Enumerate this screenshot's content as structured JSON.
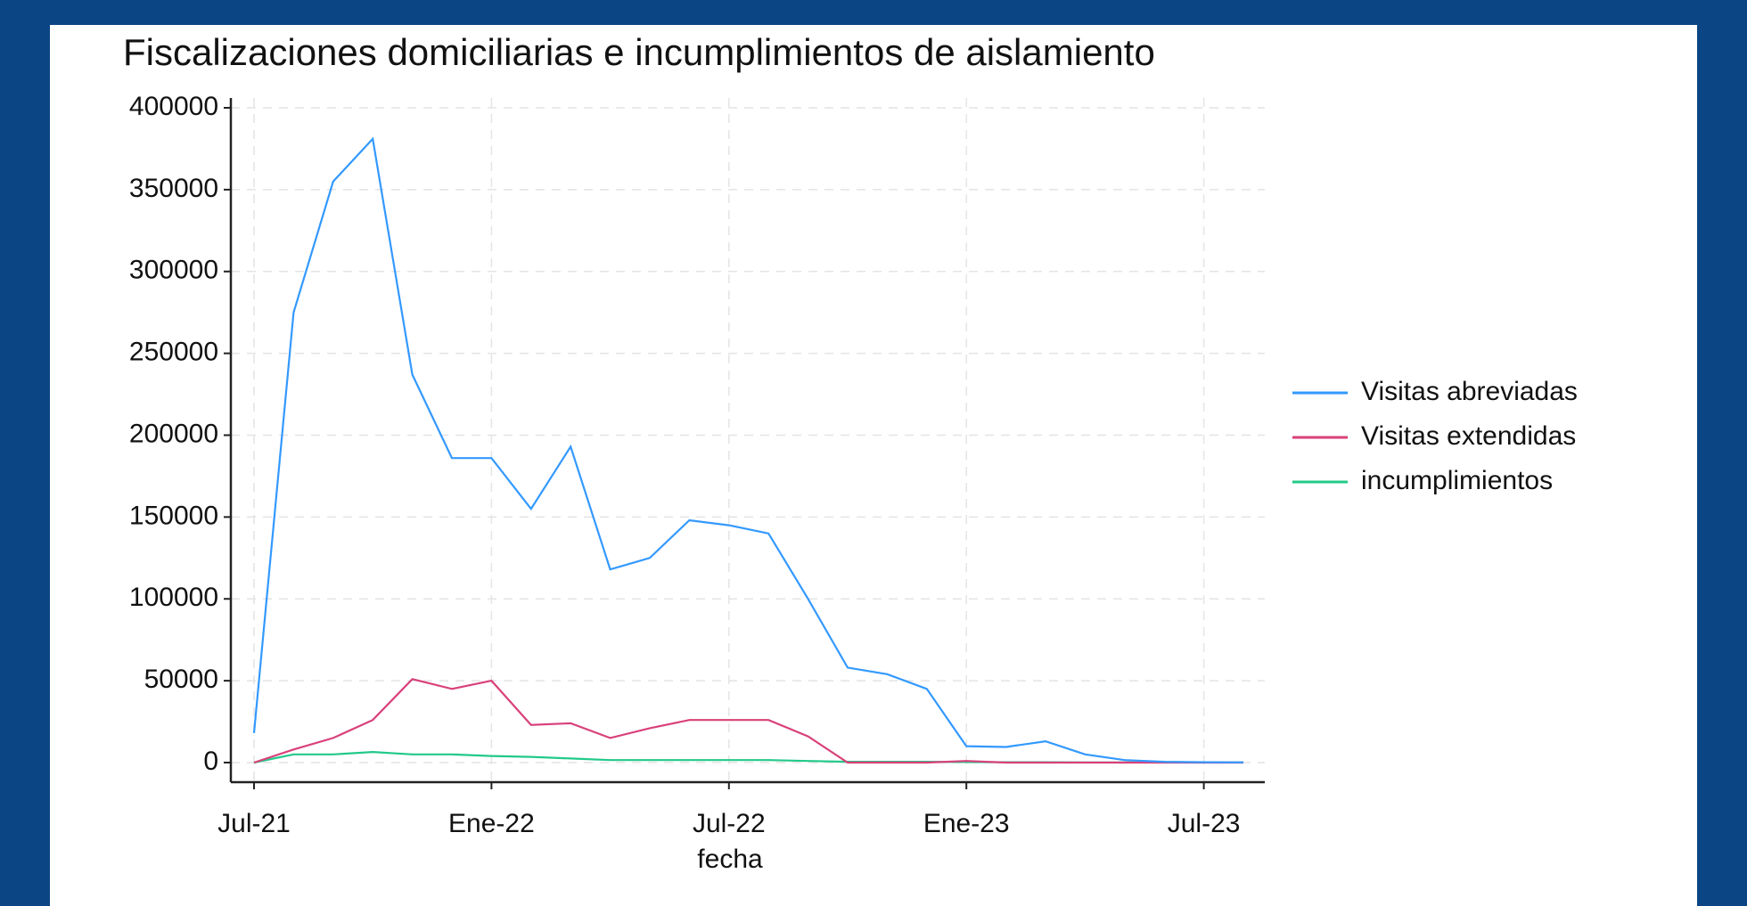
{
  "chart_data": {
    "type": "line",
    "title": "Fiscalizaciones domiciliarias e incumplimientos de aislamiento",
    "x_label": "fecha",
    "x": [
      "2021-07",
      "2021-08",
      "2021-09",
      "2021-10",
      "2021-11",
      "2021-12",
      "2022-01",
      "2022-02",
      "2022-03",
      "2022-04",
      "2022-05",
      "2022-06",
      "2022-07",
      "2022-08",
      "2022-09",
      "2022-10",
      "2022-11",
      "2022-12",
      "2023-01",
      "2023-02",
      "2023-03",
      "2023-04",
      "2023-05",
      "2023-06",
      "2023-07",
      "2023-08"
    ],
    "series": [
      {
        "name": "Visitas abreviadas",
        "color": "#3399ff",
        "values": [
          18000,
          275000,
          355000,
          381000,
          237000,
          186000,
          186000,
          155000,
          193000,
          118000,
          125000,
          148000,
          145000,
          140000,
          100000,
          58000,
          54000,
          45000,
          10000,
          9500,
          13000,
          5000,
          1500,
          500,
          200,
          100
        ]
      },
      {
        "name": "Visitas extendidas",
        "color": "#d9417a",
        "values": [
          0,
          8000,
          15000,
          26000,
          51000,
          45000,
          50000,
          23000,
          24000,
          15000,
          21000,
          26000,
          26000,
          26000,
          16000,
          0,
          0,
          0,
          1000,
          0,
          0,
          0,
          0,
          0,
          0,
          0
        ]
      },
      {
        "name": "incumplimientos",
        "color": "#22c98a",
        "values": [
          0,
          5000,
          5000,
          6500,
          5000,
          5000,
          4000,
          3500,
          2500,
          1500,
          1500,
          1500,
          1500,
          1500,
          1000,
          500,
          500,
          500,
          300,
          200,
          200,
          100,
          100,
          100,
          100,
          100
        ]
      }
    ],
    "xlim": [
      "2021-07",
      "2023-08"
    ],
    "xticks": [
      {
        "value": "2021-07",
        "label": "Jul-21"
      },
      {
        "value": "2022-01",
        "label": "Ene-22"
      },
      {
        "value": "2022-07",
        "label": "Jul-22"
      },
      {
        "value": "2023-01",
        "label": "Ene-23"
      },
      {
        "value": "2023-07",
        "label": "Jul-23"
      }
    ],
    "ylim": [
      0,
      400000
    ],
    "yticks": [
      0,
      50000,
      100000,
      150000,
      200000,
      250000,
      300000,
      350000,
      400000
    ],
    "grid": true,
    "legend": "right"
  }
}
